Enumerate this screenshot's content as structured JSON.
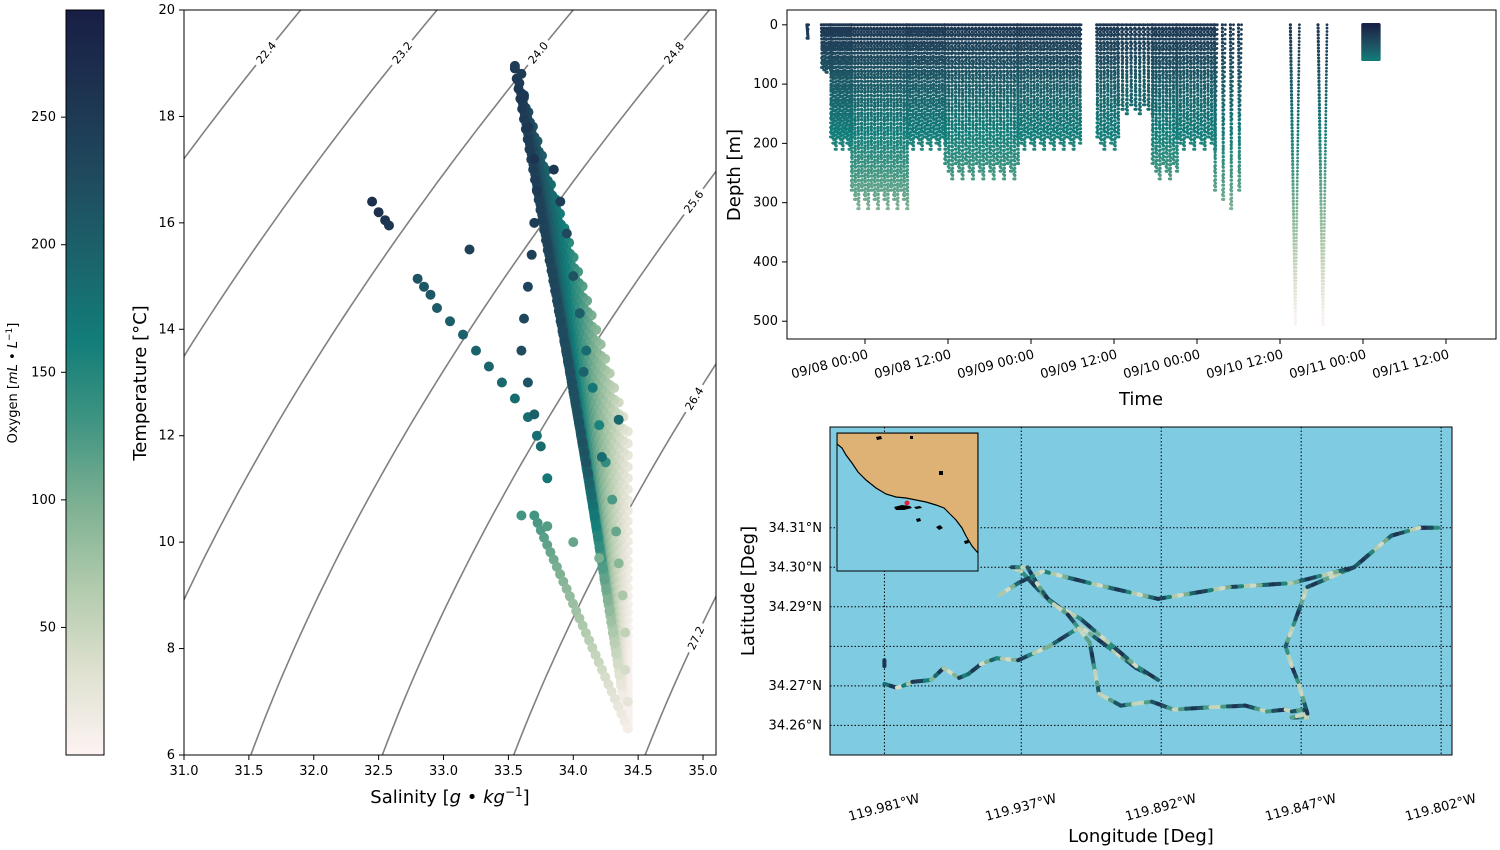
{
  "colors": {
    "ocean": "#7ecbe2",
    "land": "#deb274",
    "contour": "#808080",
    "station_marker": "#e0203a",
    "colormap": [
      "#fdf3f3",
      "#dfe1d0",
      "#b2cbad",
      "#7fb193",
      "#419582",
      "#127d79",
      "#1b636b",
      "#1f4a5e",
      "#1d3350",
      "#181e45"
    ]
  },
  "colorbar": {
    "label": "Oxygen [mL • L⁻¹]",
    "label_text": "Oxygen [",
    "label_unit": "mL • L",
    "label_exp": "−1",
    "label_close": "]",
    "range": [
      0,
      292
    ],
    "ticks": [
      "50",
      "100",
      "150",
      "200",
      "250"
    ]
  },
  "chart_data": [
    {
      "type": "scatter",
      "xlabel": "Salinity [g • kg⁻¹]",
      "xlabel_text": "Salinity [",
      "xlabel_unit": "g • kg",
      "xlabel_exp": "−1",
      "xlabel_close": "]",
      "ylabel": "Temperature [°C]",
      "xlim": [
        31.0,
        35.1
      ],
      "ylim": [
        6,
        20
      ],
      "xticks": [
        "31.0",
        "31.5",
        "32.0",
        "32.5",
        "33.0",
        "33.5",
        "34.0",
        "34.5",
        "35.0"
      ],
      "yticks": [
        "6",
        "8",
        "10",
        "12",
        "14",
        "16",
        "18",
        "20"
      ],
      "density_contours": [
        "22.4",
        "23.2",
        "24.0",
        "24.8",
        "25.6",
        "26.4",
        "27.2"
      ],
      "color_by": "Oxygen",
      "points": [
        {
          "s": 32.45,
          "t": 16.4,
          "o": 265
        },
        {
          "s": 32.5,
          "t": 16.2,
          "o": 262
        },
        {
          "s": 32.55,
          "t": 16.05,
          "o": 258
        },
        {
          "s": 32.58,
          "t": 15.95,
          "o": 255
        },
        {
          "s": 33.2,
          "t": 15.5,
          "o": 240
        },
        {
          "s": 32.8,
          "t": 14.95,
          "o": 215
        },
        {
          "s": 32.85,
          "t": 14.8,
          "o": 212
        },
        {
          "s": 32.9,
          "t": 14.65,
          "o": 210
        },
        {
          "s": 32.95,
          "t": 14.4,
          "o": 205
        },
        {
          "s": 33.05,
          "t": 14.15,
          "o": 200
        },
        {
          "s": 33.15,
          "t": 13.9,
          "o": 198
        },
        {
          "s": 33.25,
          "t": 13.6,
          "o": 195
        },
        {
          "s": 33.35,
          "t": 13.3,
          "o": 192
        },
        {
          "s": 33.45,
          "t": 13.0,
          "o": 188
        },
        {
          "s": 33.55,
          "t": 12.7,
          "o": 185
        },
        {
          "s": 33.65,
          "t": 12.35,
          "o": 182
        },
        {
          "s": 33.72,
          "t": 12.0,
          "o": 180
        },
        {
          "s": 33.55,
          "t": 18.95,
          "o": 245
        },
        {
          "s": 33.6,
          "t": 18.8,
          "o": 250
        },
        {
          "s": 33.62,
          "t": 18.4,
          "o": 252
        },
        {
          "s": 33.65,
          "t": 17.8,
          "o": 255
        },
        {
          "s": 33.7,
          "t": 17.2,
          "o": 258
        },
        {
          "s": 33.72,
          "t": 16.6,
          "o": 250
        },
        {
          "s": 33.7,
          "t": 16.0,
          "o": 245
        },
        {
          "s": 33.68,
          "t": 15.4,
          "o": 240
        },
        {
          "s": 33.65,
          "t": 14.8,
          "o": 235
        },
        {
          "s": 33.62,
          "t": 14.2,
          "o": 230
        },
        {
          "s": 33.6,
          "t": 13.6,
          "o": 225
        },
        {
          "s": 33.65,
          "t": 13.0,
          "o": 215
        },
        {
          "s": 33.7,
          "t": 12.4,
          "o": 200
        },
        {
          "s": 33.75,
          "t": 11.8,
          "o": 185
        },
        {
          "s": 33.8,
          "t": 11.2,
          "o": 170
        },
        {
          "s": 33.85,
          "t": 17.0,
          "o": 255
        },
        {
          "s": 33.9,
          "t": 16.4,
          "o": 245
        },
        {
          "s": 33.95,
          "t": 15.8,
          "o": 230
        },
        {
          "s": 34.0,
          "t": 15.0,
          "o": 215
        },
        {
          "s": 34.05,
          "t": 14.3,
          "o": 200
        },
        {
          "s": 34.1,
          "t": 13.6,
          "o": 185
        },
        {
          "s": 34.15,
          "t": 12.9,
          "o": 170
        },
        {
          "s": 34.2,
          "t": 12.2,
          "o": 155
        },
        {
          "s": 34.25,
          "t": 11.5,
          "o": 140
        },
        {
          "s": 34.3,
          "t": 10.8,
          "o": 125
        },
        {
          "s": 34.33,
          "t": 10.2,
          "o": 110
        },
        {
          "s": 34.35,
          "t": 9.6,
          "o": 90
        },
        {
          "s": 34.38,
          "t": 9.0,
          "o": 70
        },
        {
          "s": 34.4,
          "t": 8.3,
          "o": 55
        },
        {
          "s": 34.4,
          "t": 7.6,
          "o": 40
        },
        {
          "s": 34.42,
          "t": 7.0,
          "o": 25
        },
        {
          "s": 34.42,
          "t": 6.5,
          "o": 10
        },
        {
          "s": 34.08,
          "t": 13.2,
          "o": 195
        },
        {
          "s": 34.35,
          "t": 12.3,
          "o": 190
        },
        {
          "s": 34.22,
          "t": 11.6,
          "o": 185
        },
        {
          "s": 33.6,
          "t": 10.5,
          "o": 130
        },
        {
          "s": 33.8,
          "t": 10.3,
          "o": 120
        },
        {
          "s": 34.0,
          "t": 10.0,
          "o": 110
        },
        {
          "s": 34.2,
          "t": 9.7,
          "o": 100
        }
      ]
    },
    {
      "type": "scatter",
      "xlabel": "Time",
      "ylabel": "Depth [m]",
      "xticks": [
        "09/08 00:00",
        "09/08 12:00",
        "09/09 00:00",
        "09/09 12:00",
        "09/10 00:00",
        "09/10 12:00",
        "09/11 00:00",
        "09/11 12:00"
      ],
      "yticks": [
        "0",
        "100",
        "200",
        "300",
        "400",
        "500"
      ],
      "ylim": [
        530,
        -25
      ],
      "xlim_hours_from_tick0": [
        -11,
        22
      ],
      "color_by": "Oxygen",
      "profile_groups": [
        {
          "start": -8.4,
          "end": -7.9,
          "n": 1,
          "depth": 25
        },
        {
          "start": -6.3,
          "end": -5.0,
          "n": 5,
          "depth": 80
        },
        {
          "start": -5.0,
          "end": -2.0,
          "n": 10,
          "depth": 210
        },
        {
          "start": -2.0,
          "end": 6.0,
          "n": 18,
          "depth": 310
        },
        {
          "start": 6.0,
          "end": 11.5,
          "n": 14,
          "depth": 210
        },
        {
          "start": 11.5,
          "end": 22.0,
          "n": 22,
          "depth": 260
        },
        {
          "start": 22.0,
          "end": 31.0,
          "n": 20,
          "depth": 210
        },
        {
          "start": 33.5,
          "end": 36.5,
          "n": 7,
          "depth": 210
        },
        {
          "start": 36.5,
          "end": 41.5,
          "n": 9,
          "depth": 150
        },
        {
          "start": 41.5,
          "end": 45.0,
          "n": 8,
          "depth": 260
        },
        {
          "start": 45.0,
          "end": 50.5,
          "n": 12,
          "depth": 210
        },
        {
          "start": 50.5,
          "end": 54.0,
          "n": 4,
          "depth": 310
        }
      ],
      "deep_profiles": [
        {
          "time": 61.5,
          "depth": 505
        },
        {
          "time": 65.5,
          "depth": 505
        }
      ],
      "final_cluster": {
        "start": 72.0,
        "end": 74.3,
        "depth": 58
      }
    },
    {
      "type": "line",
      "xlabel": "Longitude [Deg]",
      "ylabel": "Latitude [Deg]",
      "xlim": [
        -119.9985,
        -119.7985
      ],
      "ylim": [
        34.2525,
        34.3355
      ],
      "xticks": [
        -119.981,
        -119.937,
        -119.892,
        -119.847,
        -119.802
      ],
      "xtick_labels": [
        "119.981°W",
        "119.937°W",
        "119.892°W",
        "119.847°W",
        "119.802°W"
      ],
      "yticks": [
        34.26,
        34.27,
        34.28,
        34.29,
        34.3,
        34.31
      ],
      "ytick_labels": [
        "34.26°N",
        "34.27°N",
        "34.29°N",
        "34.30°N",
        "34.31°N"
      ],
      "ytick_label_positions": [
        34.26,
        34.27,
        34.29,
        34.3,
        34.31
      ],
      "grid": true,
      "color_by": "Oxygen",
      "track": [
        [
          -119.981,
          34.2705
        ],
        [
          -119.977,
          34.2695
        ],
        [
          -119.975,
          34.27
        ],
        [
          -119.972,
          34.271
        ],
        [
          -119.966,
          34.2715
        ],
        [
          -119.962,
          34.2745
        ],
        [
          -119.957,
          34.272
        ],
        [
          -119.954,
          34.273
        ],
        [
          -119.95,
          34.2755
        ],
        [
          -119.945,
          34.277
        ],
        [
          -119.938,
          34.2765
        ],
        [
          -119.928,
          34.28
        ],
        [
          -119.918,
          34.285
        ],
        [
          -119.9,
          34.2745
        ],
        [
          -119.893,
          34.2715
        ],
        [
          -119.9,
          34.275
        ],
        [
          -119.918,
          34.287
        ],
        [
          -119.925,
          34.29
        ],
        [
          -119.93,
          34.293
        ],
        [
          -119.937,
          34.299
        ],
        [
          -119.94,
          34.3
        ],
        [
          -119.935,
          34.3
        ],
        [
          -119.932,
          34.296
        ],
        [
          -119.928,
          34.2915
        ],
        [
          -119.922,
          34.288
        ],
        [
          -119.915,
          34.281
        ],
        [
          -119.912,
          34.268
        ],
        [
          -119.905,
          34.265
        ],
        [
          -119.895,
          34.266
        ],
        [
          -119.888,
          34.264
        ],
        [
          -119.878,
          34.2645
        ],
        [
          -119.865,
          34.265
        ],
        [
          -119.858,
          34.2635
        ],
        [
          -119.852,
          34.264
        ],
        [
          -119.85,
          34.2635
        ],
        [
          -119.846,
          34.264
        ],
        [
          -119.845,
          34.262
        ],
        [
          -119.85,
          34.262
        ],
        [
          -119.845,
          34.263
        ],
        [
          -119.848,
          34.271
        ],
        [
          -119.85,
          34.275
        ],
        [
          -119.852,
          34.28
        ],
        [
          -119.845,
          34.295
        ],
        [
          -119.83,
          34.3
        ],
        [
          -119.818,
          34.308
        ],
        [
          -119.809,
          34.31
        ],
        [
          -119.803,
          34.31
        ],
        [
          -119.809,
          34.31
        ],
        [
          -119.818,
          34.308
        ],
        [
          -119.83,
          34.3
        ],
        [
          -119.85,
          34.296
        ],
        [
          -119.87,
          34.295
        ],
        [
          -119.893,
          34.292
        ],
        [
          -119.915,
          34.296
        ],
        [
          -119.93,
          34.299
        ],
        [
          -119.938,
          34.296
        ],
        [
          -119.944,
          34.293
        ]
      ],
      "track_segment2": [
        [
          -119.981,
          34.2765
        ],
        [
          -119.981,
          34.275
        ]
      ],
      "inset": "regional overview map with station marker"
    }
  ]
}
